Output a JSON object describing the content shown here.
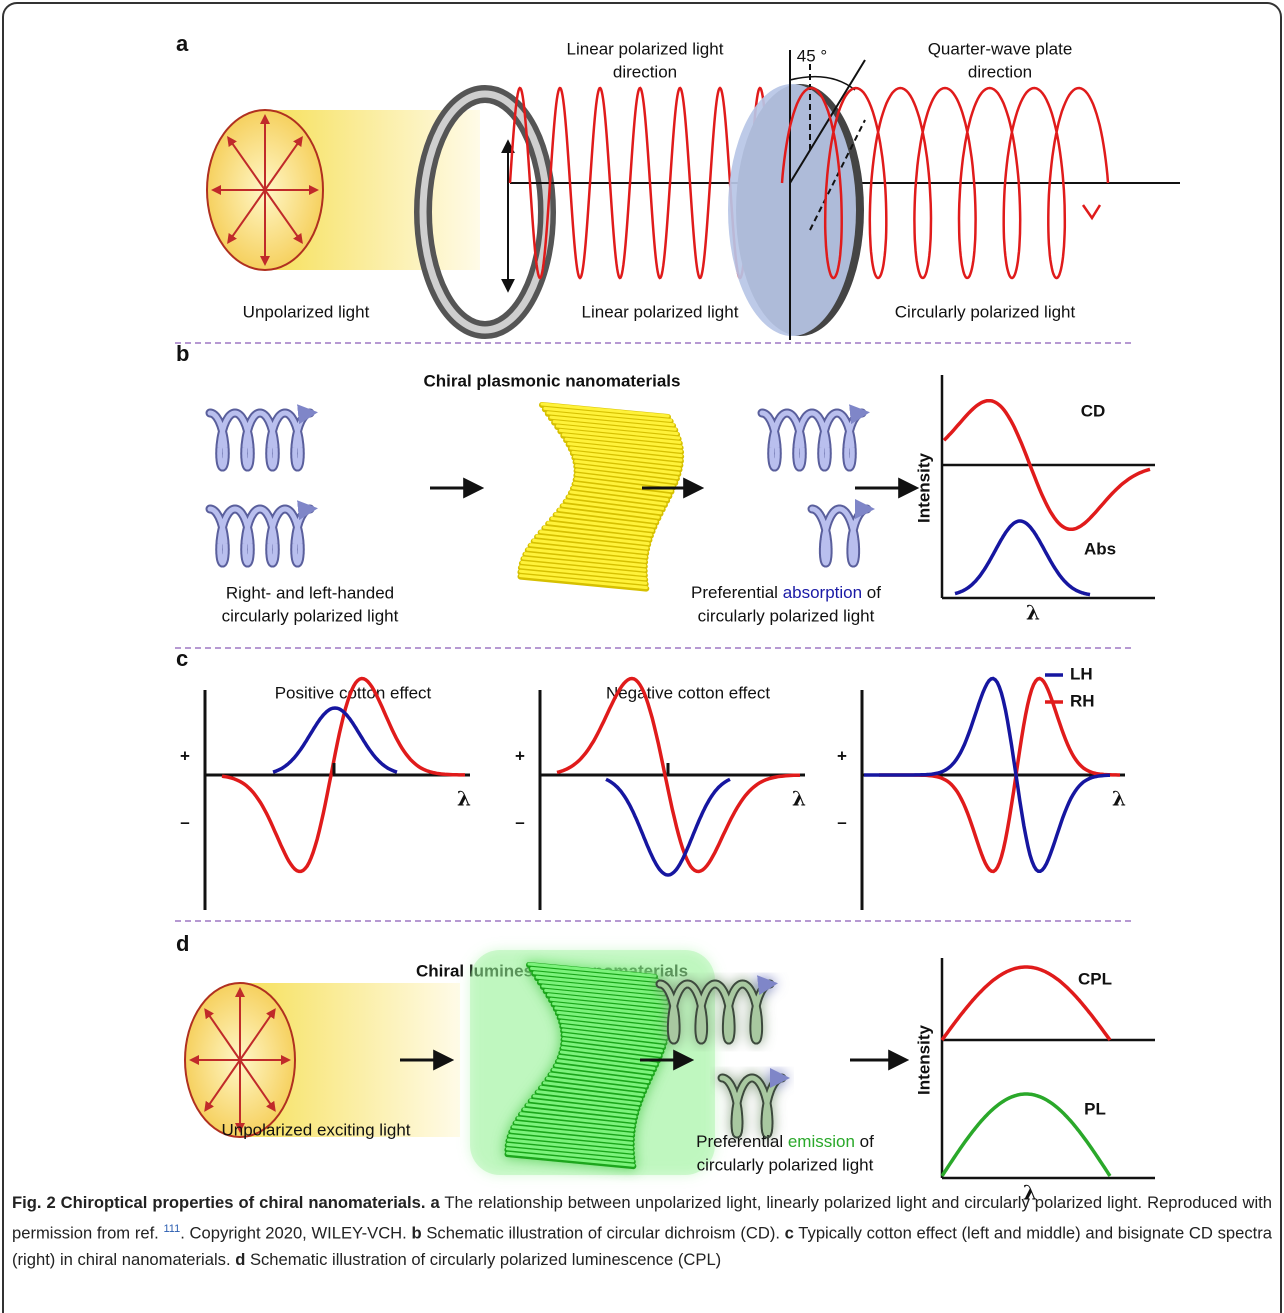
{
  "panel_a": {
    "label": "a",
    "linear_direction": [
      "Linear polarized light",
      "direction"
    ],
    "angle": "45 °",
    "plate_direction": [
      "Quarter-wave plate",
      "direction"
    ],
    "unpolarized": "Unpolarized light",
    "linear": "Linear polarized light",
    "circular": "Circularly polarized light"
  },
  "panel_b": {
    "label": "b",
    "title": "Chiral plasmonic nanomaterials",
    "input": [
      "Right- and left-handed",
      "circularly polarized light"
    ],
    "output": {
      "before": "Preferential ",
      "highlight": "absorption",
      "after": " of",
      "line2": "circularly polarized light",
      "highlight_color": "#1a1aa6"
    },
    "curve_top": "CD",
    "curve_bottom": "Abs",
    "y_label": "Intensity",
    "x_label": "λ"
  },
  "panel_c": {
    "label": "c",
    "plots": [
      {
        "title": "Positive cotton effect",
        "plus": "+",
        "minus": "–",
        "x_label": "λ"
      },
      {
        "title": "Negative cotton effect",
        "plus": "+",
        "minus": "–",
        "x_label": "λ"
      },
      {
        "plus": "+",
        "minus": "–",
        "x_label": "λ"
      }
    ],
    "legend": [
      {
        "name": "LH",
        "color": "#1616a0"
      },
      {
        "name": "RH",
        "color": "#e01b1b"
      }
    ]
  },
  "panel_d": {
    "label": "d",
    "title": "Chiral luminescent nanomaterials",
    "input": "Unpolarized exciting light",
    "output": {
      "before": "Preferential ",
      "highlight": "emission",
      "after": " of",
      "line2": "circularly polarized light",
      "highlight_color": "#2aa82a"
    },
    "curve_top": "CPL",
    "curve_bottom": "PL",
    "y_label": "Intensity",
    "x_label": "λ"
  },
  "caption": {
    "segments": [
      {
        "text": "Fig. 2 Chiroptical properties of chiral nanomaterials.",
        "style": "bold"
      },
      {
        "text": " a",
        "style": "bold"
      },
      {
        "text": " The relationship between unpolarized light, linearly polarized light and circularly polarized light. Reproduced with permission from ref. ",
        "style": "normal"
      },
      {
        "text": "111",
        "style": "sup"
      },
      {
        "text": ". Copyright 2020, WILEY-VCH. ",
        "style": "normal"
      },
      {
        "text": "b",
        "style": "bold"
      },
      {
        "text": " Schematic illustration of circular dichroism (CD). ",
        "style": "normal"
      },
      {
        "text": "c",
        "style": "bold"
      },
      {
        "text": " Typically cotton effect (left and middle) and bisignate CD spectra (right) in chiral nanomaterials. ",
        "style": "normal"
      },
      {
        "text": "d",
        "style": "bold"
      },
      {
        "text": " Schematic illustration of circularly polarized luminescence (CPL)",
        "style": "normal"
      }
    ]
  }
}
